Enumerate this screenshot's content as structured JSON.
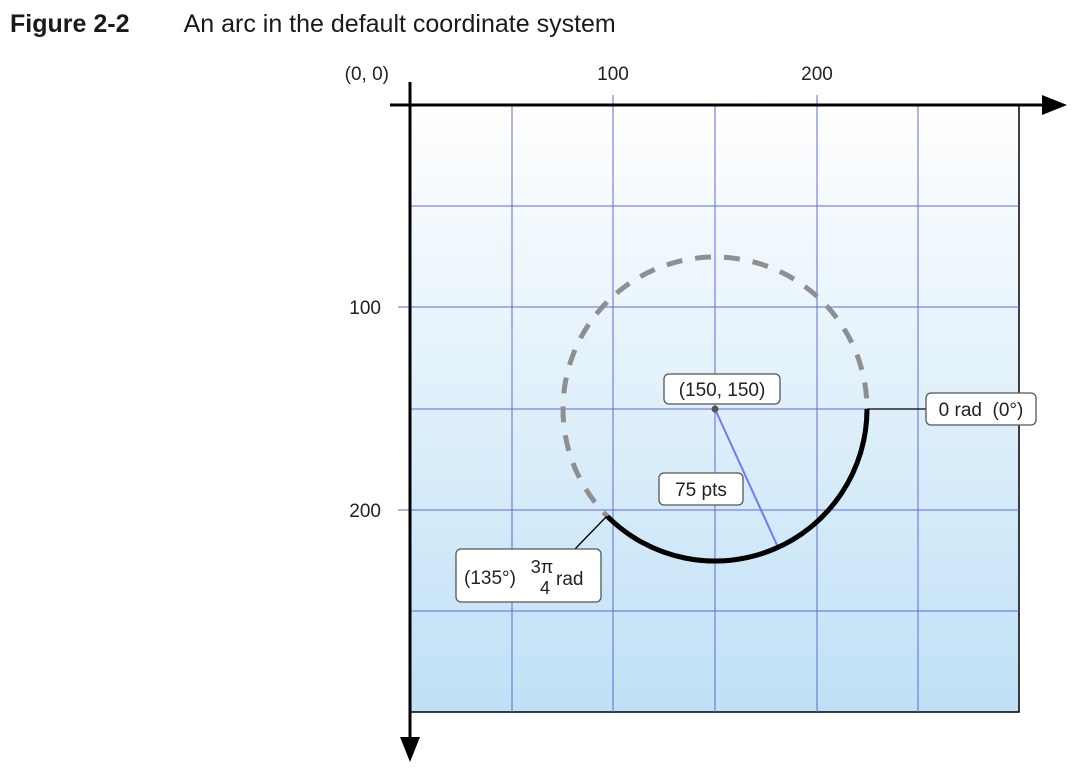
{
  "figure": {
    "number": "Figure 2-2",
    "title": "An arc in the default coordinate system"
  },
  "axes": {
    "origin_label": "(0, 0)",
    "x_tick_labels": [
      "100",
      "200"
    ],
    "y_tick_labels": [
      "100",
      "200"
    ]
  },
  "annotations": {
    "center_label": "(150, 150)",
    "radius_label": "75 pts",
    "start_angle_label": "0 rad  (0°)",
    "end_angle_degrees": "(135°)",
    "end_angle_fraction_num": "3π",
    "end_angle_fraction_den": "4",
    "end_angle_unit": "rad"
  },
  "arc": {
    "center_x": 150,
    "center_y": 150,
    "radius": 75,
    "start_angle_rad": 0,
    "end_angle_rad": 2.356,
    "clockwise": true
  },
  "colors": {
    "grid": "#5c6bd8",
    "radius_line": "#6f7cf0",
    "dashed_circle": "#8f8f8f",
    "arc": "#000000",
    "bg_top": "#ffffff",
    "bg_bottom": "#bfe0f6"
  }
}
